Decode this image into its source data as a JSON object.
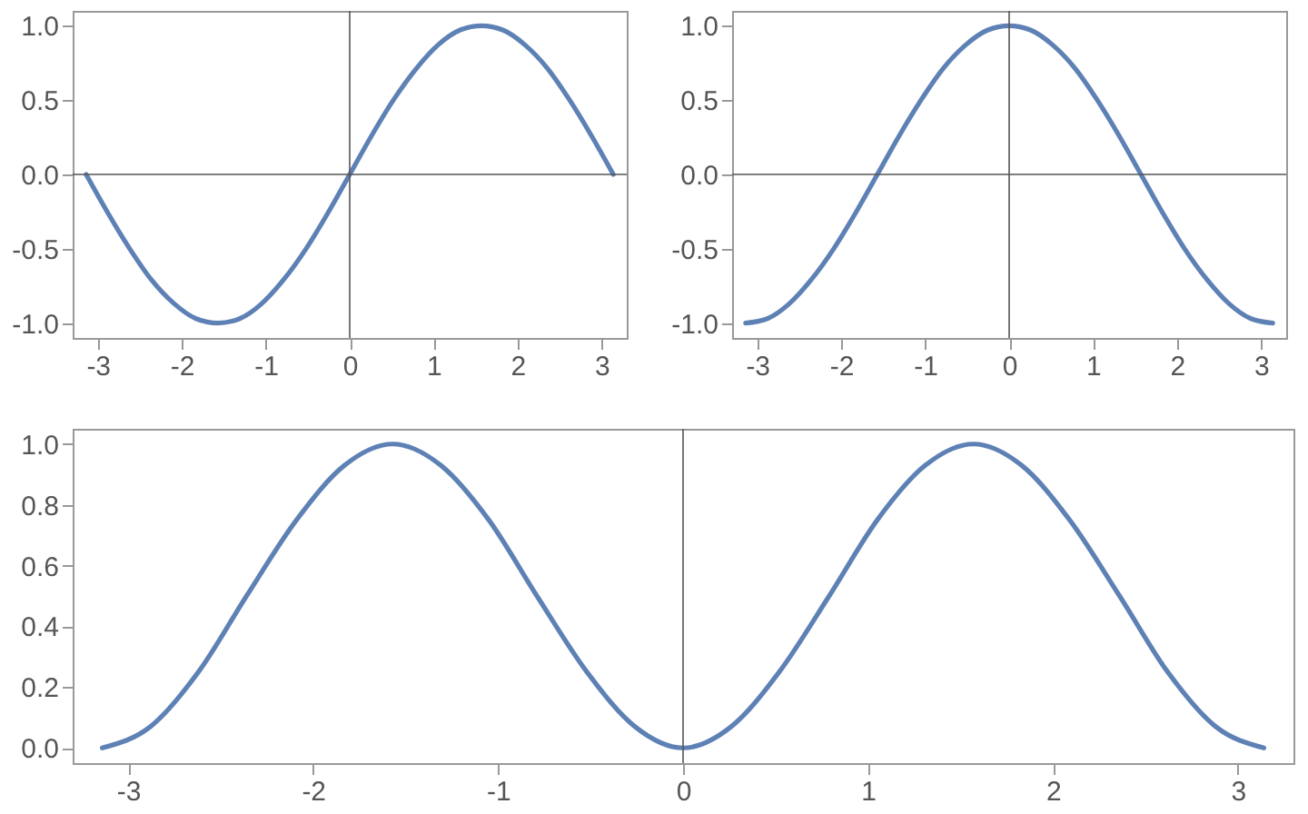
{
  "chart_data": [
    {
      "type": "line",
      "x": [
        -3.14,
        -2.88,
        -2.62,
        -2.36,
        -2.09,
        -1.83,
        -1.57,
        -1.31,
        -1.05,
        -0.79,
        -0.52,
        -0.26,
        0,
        0.26,
        0.52,
        0.79,
        1.05,
        1.31,
        1.57,
        1.83,
        2.09,
        2.36,
        2.62,
        2.88,
        3.14
      ],
      "series": [
        {
          "color": "#5e81b5",
          "values": [
            0,
            -0.26,
            -0.5,
            -0.71,
            -0.87,
            -0.97,
            -1,
            -0.97,
            -0.87,
            -0.71,
            -0.5,
            -0.26,
            0,
            0.26,
            0.5,
            0.71,
            0.87,
            0.97,
            1,
            0.97,
            0.87,
            0.71,
            0.5,
            0.26,
            0
          ]
        }
      ],
      "xlim": [
        -3.3,
        3.3
      ],
      "ylim": [
        -1.1,
        1.1
      ],
      "xticks": [
        -3,
        -2,
        -1,
        0,
        1,
        2,
        3
      ],
      "yticks": [
        {
          "value": -1,
          "label": "-1.0"
        },
        {
          "value": -0.5,
          "label": "-0.5"
        },
        {
          "value": 0,
          "label": "0.0"
        },
        {
          "value": 0.5,
          "label": "0.5"
        },
        {
          "value": 1,
          "label": "1.0"
        }
      ],
      "ref_lines": [
        {
          "axis": "x",
          "value": 0,
          "color": "#555555"
        },
        {
          "axis": "y",
          "value": 0,
          "color": "#555555"
        }
      ],
      "grid": false,
      "line_style": "solid",
      "marker": "none"
    },
    {
      "type": "line",
      "x": [
        -3.14,
        -2.88,
        -2.62,
        -2.36,
        -2.09,
        -1.83,
        -1.57,
        -1.31,
        -1.05,
        -0.79,
        -0.52,
        -0.26,
        0,
        0.26,
        0.52,
        0.79,
        1.05,
        1.31,
        1.57,
        1.83,
        2.09,
        2.36,
        2.62,
        2.88,
        3.14
      ],
      "series": [
        {
          "color": "#5e81b5",
          "values": [
            -1,
            -0.97,
            -0.87,
            -0.71,
            -0.5,
            -0.26,
            0,
            0.26,
            0.5,
            0.71,
            0.87,
            0.97,
            1,
            0.97,
            0.87,
            0.71,
            0.5,
            0.26,
            0,
            -0.26,
            -0.5,
            -0.71,
            -0.87,
            -0.97,
            -1
          ]
        }
      ],
      "xlim": [
        -3.3,
        3.3
      ],
      "ylim": [
        -1.1,
        1.1
      ],
      "xticks": [
        -3,
        -2,
        -1,
        0,
        1,
        2,
        3
      ],
      "yticks": [
        {
          "value": -1,
          "label": "-1.0"
        },
        {
          "value": -0.5,
          "label": "-0.5"
        },
        {
          "value": 0,
          "label": "0.0"
        },
        {
          "value": 0.5,
          "label": "0.5"
        },
        {
          "value": 1,
          "label": "1.0"
        }
      ],
      "ref_lines": [
        {
          "axis": "x",
          "value": 0,
          "color": "#555555"
        },
        {
          "axis": "y",
          "value": 0,
          "color": "#555555"
        }
      ],
      "grid": false,
      "line_style": "solid",
      "marker": "none"
    },
    {
      "type": "line",
      "x": [
        -3.14,
        -2.88,
        -2.62,
        -2.36,
        -2.09,
        -1.83,
        -1.57,
        -1.31,
        -1.05,
        -0.79,
        -0.52,
        -0.26,
        0,
        0.26,
        0.52,
        0.79,
        1.05,
        1.31,
        1.57,
        1.83,
        2.09,
        2.36,
        2.62,
        2.88,
        3.14
      ],
      "series": [
        {
          "color": "#5e81b5",
          "values": [
            0,
            0.07,
            0.25,
            0.5,
            0.75,
            0.93,
            1,
            0.93,
            0.75,
            0.5,
            0.25,
            0.07,
            0,
            0.07,
            0.25,
            0.5,
            0.75,
            0.93,
            1,
            0.93,
            0.75,
            0.5,
            0.25,
            0.07,
            0
          ]
        }
      ],
      "xlim": [
        -3.3,
        3.3
      ],
      "ylim": [
        -0.05,
        1.05
      ],
      "xticks": [
        -3,
        -2,
        -1,
        0,
        1,
        2,
        3
      ],
      "yticks": [
        {
          "value": 0,
          "label": "0.0"
        },
        {
          "value": 0.2,
          "label": "0.2"
        },
        {
          "value": 0.4,
          "label": "0.4"
        },
        {
          "value": 0.6,
          "label": "0.6"
        },
        {
          "value": 0.8,
          "label": "0.8"
        },
        {
          "value": 1,
          "label": "1.0"
        }
      ],
      "ref_lines": [
        {
          "axis": "x",
          "value": 0,
          "color": "#555555"
        }
      ],
      "grid": false,
      "line_style": "solid",
      "marker": "none"
    }
  ]
}
